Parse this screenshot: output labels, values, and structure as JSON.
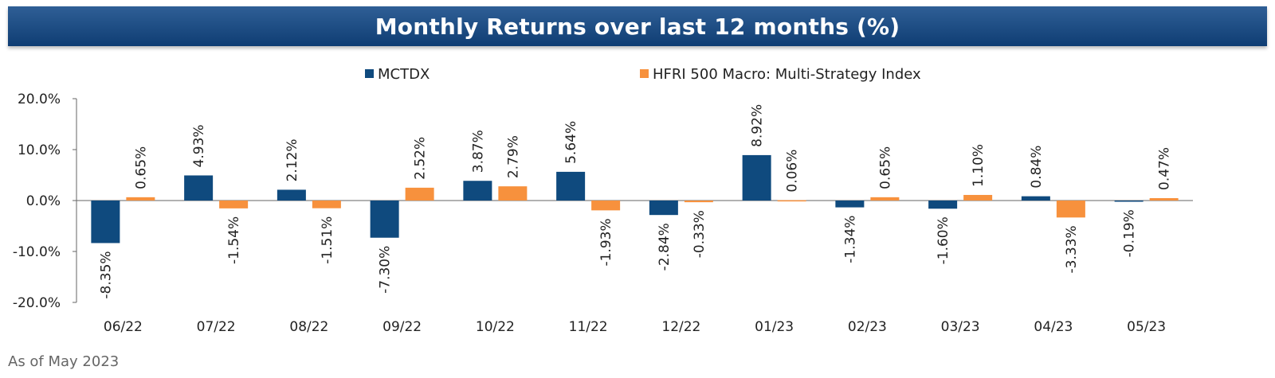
{
  "title": "Monthly Returns over last 12 months (%)",
  "footnote": "As of May 2023",
  "colors": {
    "title_bg": "#0f3d73",
    "series_1": "#0f4a7e",
    "series_2": "#f7913d",
    "axis": "#666666"
  },
  "chart_data": {
    "type": "bar",
    "title": "Monthly Returns over last 12 months (%)",
    "categories": [
      "06/22",
      "07/22",
      "08/22",
      "09/22",
      "10/22",
      "11/22",
      "12/22",
      "01/23",
      "02/23",
      "03/23",
      "04/23",
      "05/23"
    ],
    "series": [
      {
        "name": "MCTDX",
        "values": [
          -8.35,
          4.93,
          2.12,
          -7.3,
          3.87,
          5.64,
          -2.84,
          8.92,
          -1.34,
          -1.6,
          0.84,
          -0.19
        ],
        "labels": [
          "-8.35%",
          "4.93%",
          "2.12%",
          "-7.30%",
          "3.87%",
          "5.64%",
          "-2.84%",
          "8.92%",
          "-1.34%",
          "-1.60%",
          "0.84%",
          "-0.19%"
        ],
        "color": "#0f4a7e"
      },
      {
        "name": "HFRI 500 Macro: Multi-Strategy Index",
        "values": [
          0.65,
          -1.54,
          -1.51,
          2.52,
          2.79,
          -1.93,
          -0.33,
          0.06,
          0.65,
          1.1,
          -3.33,
          0.47
        ],
        "labels": [
          "0.65%",
          "-1.54%",
          "-1.51%",
          "2.52%",
          "2.79%",
          "-1.93%",
          "-0.33%",
          "0.06%",
          "0.65%",
          "1.10%",
          "-3.33%",
          "0.47%"
        ],
        "color": "#f7913d"
      }
    ],
    "y_ticks": [
      20,
      10,
      0,
      -10,
      -20
    ],
    "y_tick_labels": [
      "20.0%",
      "10.0%",
      "0.0%",
      "-10.0%",
      "-20.0%"
    ],
    "ylim": [
      -20,
      20
    ],
    "grid": false,
    "legend": "top-center",
    "xlabel": "",
    "ylabel": ""
  }
}
